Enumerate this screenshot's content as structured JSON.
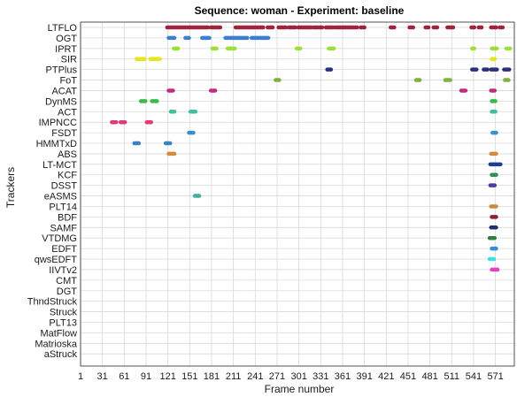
{
  "chart_data": {
    "type": "scatter",
    "title": "Sequence: woman - Experiment: baseline",
    "xlabel": "Frame number",
    "ylabel": "Trackers",
    "xlim": [
      1,
      597
    ],
    "x_ticks": [
      1,
      31,
      61,
      91,
      121,
      151,
      181,
      211,
      241,
      271,
      301,
      331,
      361,
      391,
      421,
      451,
      481,
      511,
      541,
      571
    ],
    "grid": true,
    "categories": [
      "LTFLO",
      "OGT",
      "IPRT",
      "SIR",
      "PTPlus",
      "FoT",
      "ACAT",
      "DynMS",
      "ACT",
      "IMPNCC",
      "FSDT",
      "HMMTxD",
      "ABS",
      "LT-MCT",
      "KCF",
      "DSST",
      "eASMS",
      "PLT14",
      "BDF",
      "SAMF",
      "VTDMG",
      "EDFT",
      "qwsEDFT",
      "IIVTv2",
      "CMT",
      "DGT",
      "ThndStruck",
      "Struck",
      "PLT13",
      "MatFlow",
      "Matrioska",
      "aStruck"
    ],
    "series": [
      {
        "tracker": "LTFLO",
        "color": "#a0233e",
        "segments": [
          [
            120,
            176
          ],
          [
            180,
            193
          ],
          [
            214,
            252
          ],
          [
            258,
            265
          ],
          [
            273,
            283
          ],
          [
            287,
            296
          ],
          [
            300,
            318
          ],
          [
            321,
            333
          ],
          [
            338,
            348
          ],
          [
            351,
            381
          ],
          [
            386,
            391
          ],
          [
            427,
            432
          ],
          [
            453,
            458
          ],
          [
            475,
            479
          ],
          [
            486,
            491
          ],
          [
            505,
            513
          ],
          [
            538,
            542
          ],
          [
            548,
            552
          ],
          [
            565,
            572
          ],
          [
            577,
            581
          ]
        ]
      },
      {
        "tracker": "OGT",
        "color": "#3a7fd5",
        "segments": [
          [
            122,
            130
          ],
          [
            145,
            150
          ],
          [
            168,
            178
          ],
          [
            200,
            230
          ],
          [
            236,
            259
          ]
        ]
      },
      {
        "tracker": "IPRT",
        "color": "#9be03a",
        "segments": [
          [
            129,
            135
          ],
          [
            182,
            188
          ],
          [
            203,
            213
          ],
          [
            298,
            303
          ],
          [
            342,
            349
          ],
          [
            539,
            542
          ],
          [
            566,
            573
          ],
          [
            586,
            591
          ]
        ]
      },
      {
        "tracker": "SIR",
        "color": "#e6e61a",
        "segments": [
          [
            78,
            89
          ],
          [
            97,
            110
          ],
          [
            566,
            570
          ]
        ]
      },
      {
        "tracker": "PTPlus",
        "color": "#2c2f7a",
        "segments": [
          [
            340,
            345
          ],
          [
            539,
            545
          ],
          [
            555,
            560
          ],
          [
            565,
            573
          ],
          [
            583,
            590
          ]
        ]
      },
      {
        "tracker": "FoT",
        "color": "#7fb040",
        "segments": [
          [
            269,
            274
          ],
          [
            462,
            467
          ],
          [
            502,
            509
          ],
          [
            584,
            589
          ]
        ]
      },
      {
        "tracker": "ACAT",
        "color": "#c22b7e",
        "segments": [
          [
            122,
            128
          ],
          [
            180,
            186
          ],
          [
            524,
            530
          ],
          [
            565,
            570
          ]
        ]
      },
      {
        "tracker": "DynMS",
        "color": "#3cb94a",
        "segments": [
          [
            84,
            90
          ],
          [
            99,
            106
          ],
          [
            566,
            571
          ]
        ]
      },
      {
        "tracker": "ACT",
        "color": "#3fbf9e",
        "segments": [
          [
            125,
            130
          ],
          [
            152,
            159
          ],
          [
            566,
            571
          ]
        ]
      },
      {
        "tracker": "IMPNCC",
        "color": "#e03a7a",
        "segments": [
          [
            44,
            50
          ],
          [
            56,
            62
          ],
          [
            92,
            98
          ]
        ]
      },
      {
        "tracker": "FSDT",
        "color": "#3a8fd0",
        "segments": [
          [
            150,
            156
          ],
          [
            567,
            572
          ]
        ]
      },
      {
        "tracker": "HMMTxD",
        "color": "#3a82bf",
        "segments": [
          [
            75,
            81
          ],
          [
            118,
            124
          ]
        ]
      },
      {
        "tracker": "ABS",
        "color": "#d48a3a",
        "segments": [
          [
            122,
            130
          ],
          [
            565,
            572
          ]
        ]
      },
      {
        "tracker": "LT-MCT",
        "color": "#1c3f8f",
        "segments": [
          [
            564,
            578
          ]
        ]
      },
      {
        "tracker": "KCF",
        "color": "#2f8f4f",
        "segments": [
          [
            566,
            572
          ]
        ]
      },
      {
        "tracker": "DSST",
        "color": "#4a3f9f",
        "segments": [
          [
            564,
            570
          ]
        ]
      },
      {
        "tracker": "eASMS",
        "color": "#3fb09a",
        "segments": [
          [
            158,
            164
          ]
        ]
      },
      {
        "tracker": "PLT14",
        "color": "#c98a3a",
        "segments": [
          [
            565,
            572
          ]
        ]
      },
      {
        "tracker": "BDF",
        "color": "#8f1f2f",
        "segments": [
          [
            566,
            572
          ]
        ]
      },
      {
        "tracker": "SAMF",
        "color": "#1f2f6f",
        "segments": [
          [
            565,
            572
          ]
        ]
      },
      {
        "tracker": "VTDMG",
        "color": "#2f7f3f",
        "segments": [
          [
            563,
            570
          ]
        ]
      },
      {
        "tracker": "EDFT",
        "color": "#2f8fdf",
        "segments": [
          [
            566,
            572
          ]
        ]
      },
      {
        "tracker": "qwsEDFT",
        "color": "#3fdfe8",
        "segments": [
          [
            563,
            569
          ]
        ]
      },
      {
        "tracker": "IIVTv2",
        "color": "#e63fc2",
        "segments": [
          [
            566,
            574
          ]
        ]
      },
      {
        "tracker": "CMT",
        "color": "#000000",
        "segments": []
      },
      {
        "tracker": "DGT",
        "color": "#000000",
        "segments": []
      },
      {
        "tracker": "ThndStruck",
        "color": "#000000",
        "segments": []
      },
      {
        "tracker": "Struck",
        "color": "#000000",
        "segments": []
      },
      {
        "tracker": "PLT13",
        "color": "#000000",
        "segments": []
      },
      {
        "tracker": "MatFlow",
        "color": "#000000",
        "segments": []
      },
      {
        "tracker": "Matrioska",
        "color": "#000000",
        "segments": []
      },
      {
        "tracker": "aStruck",
        "color": "#000000",
        "segments": []
      }
    ]
  }
}
